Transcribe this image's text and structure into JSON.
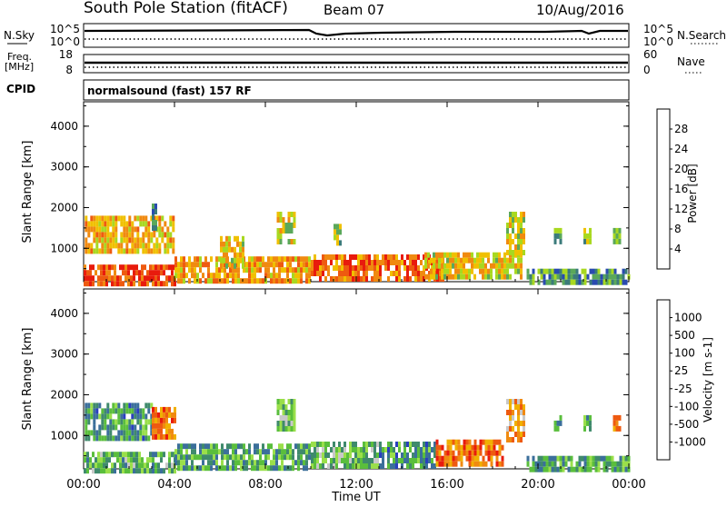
{
  "header": {
    "station": "South Pole Station (fitACF)",
    "beam": "Beam 07",
    "date": "10/Aug/2016"
  },
  "top_panels": {
    "nsky_label": "N.Sky",
    "nsky_ticks": [
      "10^5",
      "10^0"
    ],
    "nsearch_label": "N.Search",
    "nsearch_ticks": [
      "10^5",
      "10^0"
    ],
    "freq_label_1": "Freq.",
    "freq_label_2": "[MHz]",
    "freq_ticks": [
      "18",
      "8"
    ],
    "nave_label": "Nave",
    "nave_ticks": [
      "60",
      "0"
    ],
    "cpid_label": "CPID",
    "cpid_text": "normalsound (fast) 157 RF"
  },
  "chart_data": [
    {
      "type": "heatmap",
      "name": "power",
      "ylabel": "Slant Range [km]",
      "ylim": [
        180,
        4600
      ],
      "yticks": [
        "4000",
        "3000",
        "2000",
        "1000"
      ],
      "colorbar_label": "Power [dB]",
      "colorbar_ticks": [
        "28",
        "24",
        "20",
        "16",
        "12",
        "8",
        "4"
      ],
      "colors": [
        "#0018e6",
        "#2a4bb0",
        "#3b7b7b",
        "#5aa85a",
        "#a8d820",
        "#f0c000",
        "#f08a10",
        "#ee5a10",
        "#e81b0d"
      ],
      "regions": [
        {
          "x0": 0.05,
          "x1": 4.0,
          "r0": 900,
          "r1": 1800,
          "level": 0.65
        },
        {
          "x0": 0.0,
          "x1": 4.0,
          "r0": 180,
          "r1": 600,
          "level": 0.85
        },
        {
          "x0": 4.0,
          "x1": 10.0,
          "r0": 200,
          "r1": 800,
          "level": 0.7
        },
        {
          "x0": 6.0,
          "x1": 7.0,
          "r0": 600,
          "r1": 1300,
          "level": 0.6
        },
        {
          "x0": 8.5,
          "x1": 9.3,
          "r0": 1200,
          "r1": 1900,
          "level": 0.55
        },
        {
          "x0": 10.0,
          "x1": 15.8,
          "r0": 200,
          "r1": 850,
          "level": 0.8
        },
        {
          "x0": 15.0,
          "x1": 19.3,
          "r0": 250,
          "r1": 900,
          "level": 0.6
        },
        {
          "x0": 18.6,
          "x1": 19.4,
          "r0": 900,
          "r1": 1900,
          "level": 0.55
        },
        {
          "x0": 19.5,
          "x1": 24.0,
          "r0": 180,
          "r1": 500,
          "level": 0.35
        },
        {
          "x0": 20.7,
          "x1": 21.0,
          "r0": 1100,
          "r1": 1500,
          "level": 0.4
        },
        {
          "x0": 22.0,
          "x1": 22.3,
          "r0": 1200,
          "r1": 1500,
          "level": 0.45
        },
        {
          "x0": 23.3,
          "x1": 23.6,
          "r0": 1200,
          "r1": 1500,
          "level": 0.5
        },
        {
          "x0": 3.0,
          "x1": 3.2,
          "r0": 1500,
          "r1": 2100,
          "level": 0.3
        },
        {
          "x0": 11.0,
          "x1": 11.3,
          "r0": 1100,
          "r1": 1600,
          "level": 0.4
        }
      ]
    },
    {
      "type": "heatmap",
      "name": "velocity",
      "xlabel": "Time UT",
      "ylabel": "Slant Range [km]",
      "xlim": [
        0,
        24
      ],
      "ylim": [
        180,
        4600
      ],
      "xticks": [
        "00:00",
        "04:00",
        "08:00",
        "12:00",
        "16:00",
        "20:00",
        "00:00"
      ],
      "yticks": [
        "4000",
        "3000",
        "2000",
        "1000"
      ],
      "colorbar_label": "Velocity [m s-1]",
      "colorbar_ticks": [
        "1000",
        "500",
        "100",
        "25",
        "-25",
        "-100",
        "-500",
        "-1000"
      ],
      "colors": [
        "#2a3fbf",
        "#3b6f9b",
        "#3f8a6c",
        "#5abe3c",
        "#9adf4a",
        "#c8c8c8",
        "#f0b000",
        "#f08a10",
        "#ee5a10",
        "#e81b0d"
      ],
      "regions": [
        {
          "x0": 0.05,
          "x1": 3.0,
          "r0": 900,
          "r1": 1800,
          "level": 0.25
        },
        {
          "x0": 3.0,
          "x1": 4.0,
          "r0": 900,
          "r1": 1700,
          "level": 0.8
        },
        {
          "x0": 0.0,
          "x1": 4.0,
          "r0": 180,
          "r1": 600,
          "level": 0.35
        },
        {
          "x0": 4.0,
          "x1": 10.0,
          "r0": 200,
          "r1": 800,
          "level": 0.3
        },
        {
          "x0": 8.5,
          "x1": 9.3,
          "r0": 1200,
          "r1": 1900,
          "level": 0.4
        },
        {
          "x0": 10.0,
          "x1": 13.0,
          "r0": 200,
          "r1": 850,
          "level": 0.4
        },
        {
          "x0": 13.0,
          "x1": 15.5,
          "r0": 200,
          "r1": 850,
          "level": 0.25
        },
        {
          "x0": 15.5,
          "x1": 18.5,
          "r0": 250,
          "r1": 900,
          "level": 0.8
        },
        {
          "x0": 18.6,
          "x1": 19.4,
          "r0": 900,
          "r1": 1900,
          "level": 0.7
        },
        {
          "x0": 19.5,
          "x1": 24.0,
          "r0": 180,
          "r1": 500,
          "level": 0.3
        },
        {
          "x0": 20.7,
          "x1": 21.0,
          "r0": 1100,
          "r1": 1500,
          "level": 0.3
        },
        {
          "x0": 22.0,
          "x1": 22.3,
          "r0": 1200,
          "r1": 1500,
          "level": 0.3
        },
        {
          "x0": 23.3,
          "x1": 23.6,
          "r0": 1200,
          "r1": 1500,
          "level": 0.8
        }
      ]
    }
  ]
}
